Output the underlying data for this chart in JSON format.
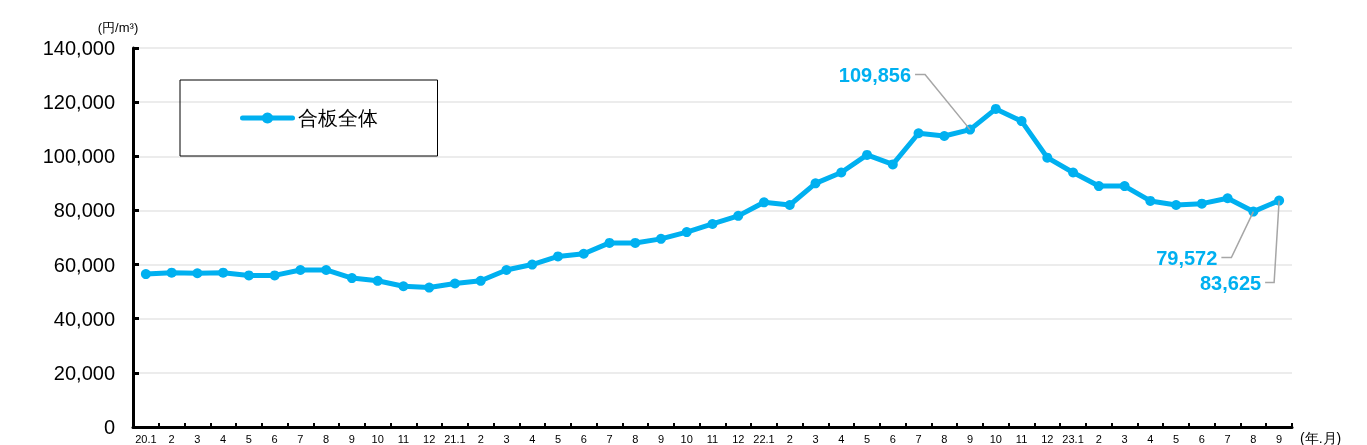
{
  "chart_data": {
    "type": "line",
    "ylabel": "(円/m³)",
    "xlabel": "(年.月)",
    "categories": [
      "20.1",
      "2",
      "3",
      "4",
      "5",
      "6",
      "7",
      "8",
      "9",
      "10",
      "11",
      "12",
      "21.1",
      "2",
      "3",
      "4",
      "5",
      "6",
      "7",
      "8",
      "9",
      "10",
      "11",
      "12",
      "22.1",
      "2",
      "3",
      "4",
      "5",
      "6",
      "7",
      "8",
      "9",
      "10",
      "11",
      "12",
      "23.1",
      "2",
      "3",
      "4",
      "5",
      "6",
      "7",
      "8",
      "9"
    ],
    "series": [
      {
        "name": "合板全体",
        "color": "#00b0f0",
        "values": [
          56500,
          57000,
          56800,
          57000,
          56000,
          56000,
          58000,
          58000,
          55000,
          54000,
          52000,
          51500,
          53000,
          54000,
          58000,
          60000,
          63000,
          64000,
          68000,
          68000,
          69500,
          72000,
          75000,
          78000,
          83000,
          82000,
          90000,
          94000,
          100500,
          97000,
          108500,
          107500,
          109856,
          117500,
          113000,
          99500,
          94000,
          89000,
          89000,
          83500,
          82000,
          82500,
          84500,
          79572,
          83625
        ]
      }
    ],
    "value_labels": [
      null,
      null,
      null,
      null,
      null,
      null,
      null,
      null,
      null,
      null,
      null,
      null,
      null,
      null,
      null,
      null,
      null,
      null,
      null,
      null,
      null,
      null,
      null,
      null,
      null,
      null,
      null,
      null,
      null,
      null,
      null,
      null,
      "109,856",
      null,
      null,
      null,
      null,
      null,
      null,
      null,
      null,
      null,
      null,
      "79,572",
      "83,625"
    ],
    "ylim": [
      0,
      140000
    ],
    "yticks": [
      0,
      {
        "value": 20000,
        "label": "20,000"
      },
      {
        "value": 40000,
        "label": "40,000"
      },
      {
        "value": 60000,
        "label": "60,000"
      },
      {
        "value": 80000,
        "label": "80,000"
      },
      {
        "value": 100000,
        "label": "100,000"
      },
      {
        "value": 120000,
        "label": "120,000"
      },
      {
        "value": 140000,
        "label": "140,000"
      }
    ],
    "grid": "y",
    "legend": "top left",
    "marker": "circle",
    "line_style": "solid"
  }
}
